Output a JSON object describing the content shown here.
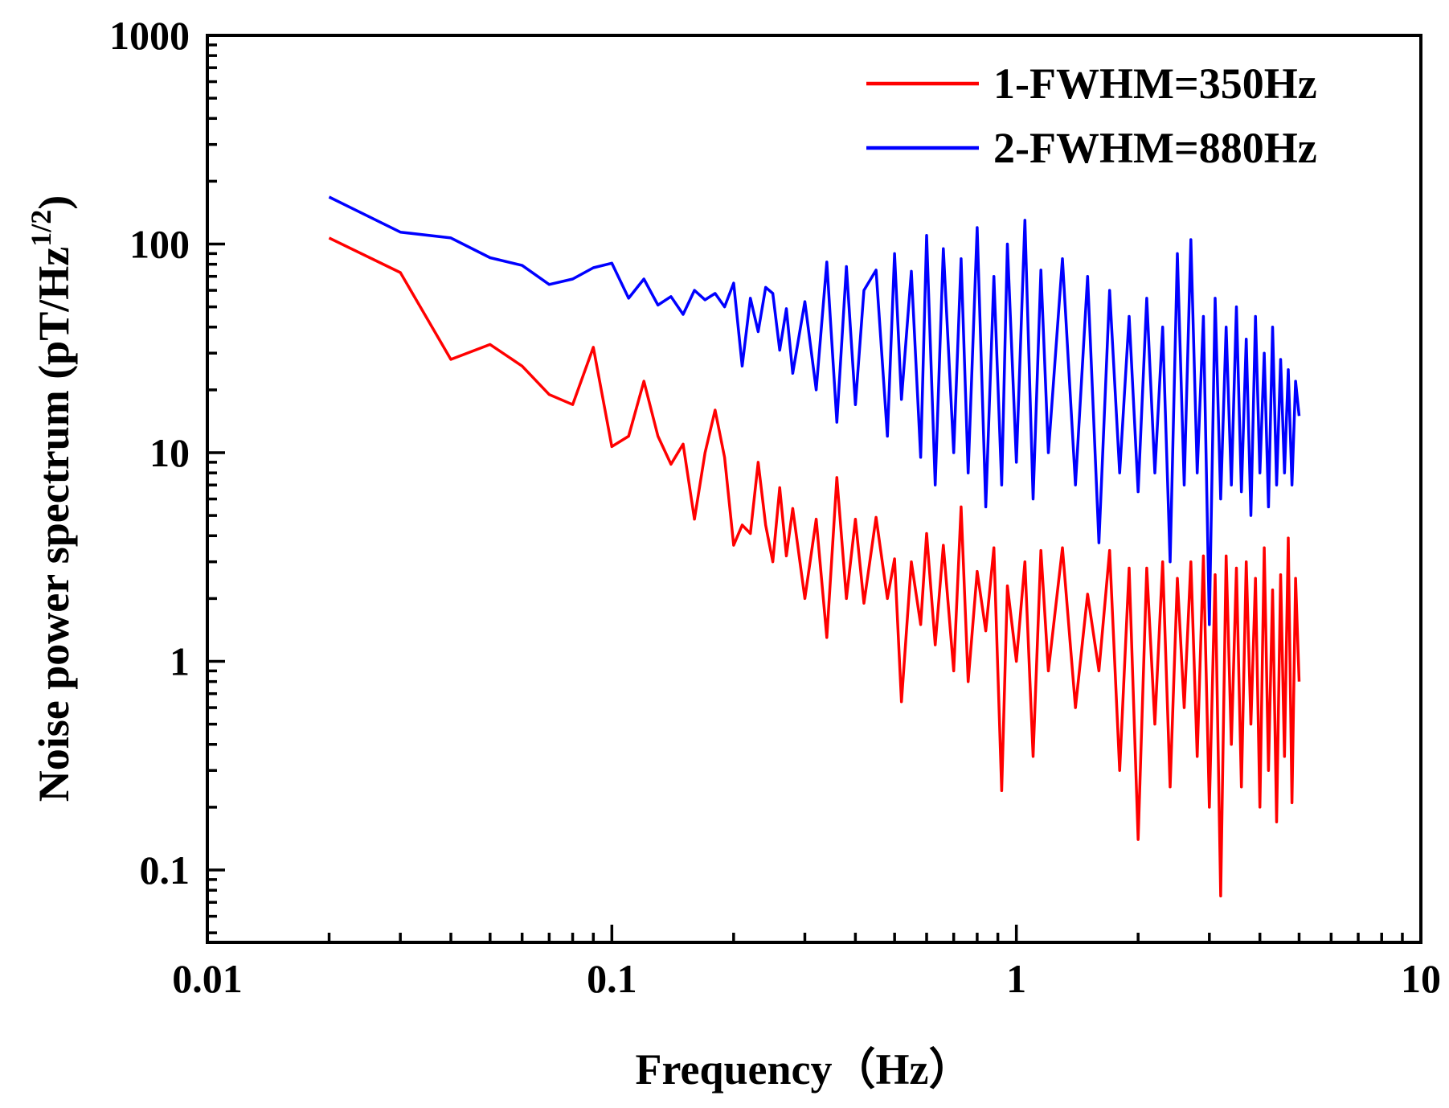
{
  "chart_data": {
    "type": "line",
    "xlabel": "Frequency（Hz）",
    "ylabel": {
      "main": "Noise power spectrum (pT/Hz",
      "superscript": "1/2",
      "close": ")"
    },
    "x_scale": "log",
    "y_scale": "log",
    "xlim": [
      0.01,
      10
    ],
    "ylim": [
      0.045,
      1000
    ],
    "x_ticks": [
      {
        "value": 0.01,
        "label": "0.01"
      },
      {
        "value": 0.1,
        "label": "0.1"
      },
      {
        "value": 1,
        "label": "1"
      },
      {
        "value": 10,
        "label": "10"
      }
    ],
    "y_ticks": [
      {
        "value": 0.1,
        "label": "0.1"
      },
      {
        "value": 1,
        "label": "1"
      },
      {
        "value": 10,
        "label": "10"
      },
      {
        "value": 100,
        "label": "100"
      },
      {
        "value": 1000,
        "label": "1000"
      }
    ],
    "grid": false,
    "legend_position": "top-right",
    "series": [
      {
        "name": "1-FWHM=350Hz",
        "color": "#ff0000",
        "x": [
          0.02,
          0.03,
          0.04,
          0.05,
          0.06,
          0.07,
          0.08,
          0.09,
          0.1,
          0.11,
          0.12,
          0.13,
          0.14,
          0.15,
          0.16,
          0.17,
          0.18,
          0.19,
          0.2,
          0.21,
          0.22,
          0.23,
          0.24,
          0.25,
          0.26,
          0.27,
          0.28,
          0.3,
          0.32,
          0.34,
          0.36,
          0.38,
          0.4,
          0.42,
          0.45,
          0.48,
          0.5,
          0.52,
          0.55,
          0.58,
          0.6,
          0.63,
          0.66,
          0.7,
          0.73,
          0.76,
          0.8,
          0.84,
          0.88,
          0.92,
          0.95,
          1.0,
          1.05,
          1.1,
          1.15,
          1.2,
          1.3,
          1.4,
          1.5,
          1.6,
          1.7,
          1.8,
          1.9,
          2.0,
          2.1,
          2.2,
          2.3,
          2.4,
          2.5,
          2.6,
          2.7,
          2.8,
          2.9,
          3.0,
          3.1,
          3.2,
          3.3,
          3.4,
          3.5,
          3.6,
          3.7,
          3.8,
          3.9,
          4.0,
          4.1,
          4.2,
          4.3,
          4.4,
          4.5,
          4.6,
          4.7,
          4.8,
          4.9,
          5.0
        ],
        "values": [
          107,
          73,
          28,
          33,
          26,
          19,
          17,
          32,
          10.7,
          12,
          22,
          12,
          8.8,
          11,
          4.8,
          10,
          16,
          9.5,
          3.6,
          4.5,
          4.1,
          9,
          4.5,
          3.0,
          6.8,
          3.2,
          5.4,
          2.0,
          4.8,
          1.3,
          7.6,
          2.0,
          4.8,
          1.9,
          4.9,
          2.0,
          3.1,
          0.64,
          3.0,
          1.5,
          4.1,
          1.2,
          3.6,
          0.9,
          5.5,
          0.8,
          2.7,
          1.4,
          3.5,
          0.24,
          2.3,
          1.0,
          3.0,
          0.35,
          3.4,
          0.9,
          3.5,
          0.6,
          2.1,
          0.9,
          3.4,
          0.3,
          2.8,
          0.14,
          2.8,
          0.5,
          3.0,
          0.25,
          2.5,
          0.6,
          3.0,
          0.35,
          3.2,
          0.2,
          2.6,
          0.075,
          3.2,
          0.4,
          2.8,
          0.25,
          3.0,
          0.5,
          2.5,
          0.2,
          3.5,
          0.3,
          2.2,
          0.17,
          2.6,
          0.35,
          3.9,
          0.21,
          2.5,
          0.8
        ]
      },
      {
        "name": "2-FWHM=880Hz",
        "color": "#0000ff",
        "x": [
          0.02,
          0.03,
          0.04,
          0.05,
          0.06,
          0.07,
          0.08,
          0.09,
          0.1,
          0.11,
          0.12,
          0.13,
          0.14,
          0.15,
          0.16,
          0.17,
          0.18,
          0.19,
          0.2,
          0.21,
          0.22,
          0.23,
          0.24,
          0.25,
          0.26,
          0.27,
          0.28,
          0.3,
          0.32,
          0.34,
          0.36,
          0.38,
          0.4,
          0.42,
          0.45,
          0.48,
          0.5,
          0.52,
          0.55,
          0.58,
          0.6,
          0.63,
          0.66,
          0.7,
          0.73,
          0.76,
          0.8,
          0.84,
          0.88,
          0.92,
          0.95,
          1.0,
          1.05,
          1.1,
          1.15,
          1.2,
          1.3,
          1.4,
          1.5,
          1.6,
          1.7,
          1.8,
          1.9,
          2.0,
          2.1,
          2.2,
          2.3,
          2.4,
          2.5,
          2.6,
          2.7,
          2.8,
          2.9,
          3.0,
          3.1,
          3.2,
          3.3,
          3.4,
          3.5,
          3.6,
          3.7,
          3.8,
          3.9,
          4.0,
          4.1,
          4.2,
          4.3,
          4.4,
          4.5,
          4.6,
          4.7,
          4.8,
          4.9,
          5.0
        ],
        "values": [
          168,
          114,
          107,
          86,
          79,
          64,
          68,
          77,
          81,
          55,
          68,
          51,
          56,
          46,
          60,
          54,
          58,
          50,
          65,
          26,
          55,
          38,
          62,
          58,
          31,
          49,
          24,
          53,
          20,
          82,
          14,
          78,
          17,
          60,
          75,
          12,
          90,
          18,
          74,
          9.5,
          110,
          7,
          95,
          10,
          85,
          8,
          120,
          5.5,
          70,
          7,
          100,
          9,
          130,
          6,
          75,
          10,
          85,
          7,
          70,
          3.7,
          60,
          8,
          45,
          6.5,
          55,
          8,
          40,
          3.0,
          90,
          7,
          105,
          8,
          45,
          1.5,
          55,
          6,
          40,
          7,
          50,
          6.5,
          35,
          5,
          45,
          8,
          30,
          5.5,
          40,
          7,
          28,
          8,
          25,
          7,
          22,
          15
        ]
      }
    ]
  }
}
